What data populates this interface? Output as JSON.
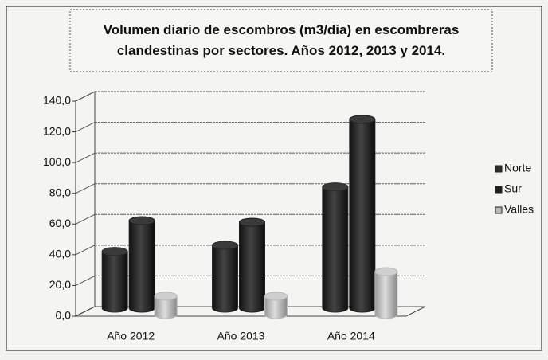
{
  "chart_data": {
    "type": "bar3d",
    "title": "Volumen diario de escombros (m3/dia) en escombreras clandestinas por sectores. Años 2012, 2013 y 2014.",
    "categories": [
      "Año 2012",
      "Año 2013",
      "Año 2014"
    ],
    "series": [
      {
        "name": "Norte",
        "color": "#2b2b2b",
        "values": [
          38,
          42,
          80
        ]
      },
      {
        "name": "Sur",
        "color": "#1f1f1f",
        "values": [
          58,
          57,
          124
        ]
      },
      {
        "name": "Valles",
        "color": "#b8b8b8",
        "values": [
          13,
          13,
          29
        ]
      }
    ],
    "ylim": [
      0,
      140
    ],
    "yticks": [
      {
        "value": 0,
        "label": "0,0"
      },
      {
        "value": 20,
        "label": "20,0"
      },
      {
        "value": 40,
        "label": "40,0"
      },
      {
        "value": 60,
        "label": "60,0"
      },
      {
        "value": 80,
        "label": "80,0"
      },
      {
        "value": 100,
        "label": "100,0"
      },
      {
        "value": 120,
        "label": "120,0"
      },
      {
        "value": 140,
        "label": "140,0"
      }
    ],
    "grid": true,
    "legend": "right"
  }
}
